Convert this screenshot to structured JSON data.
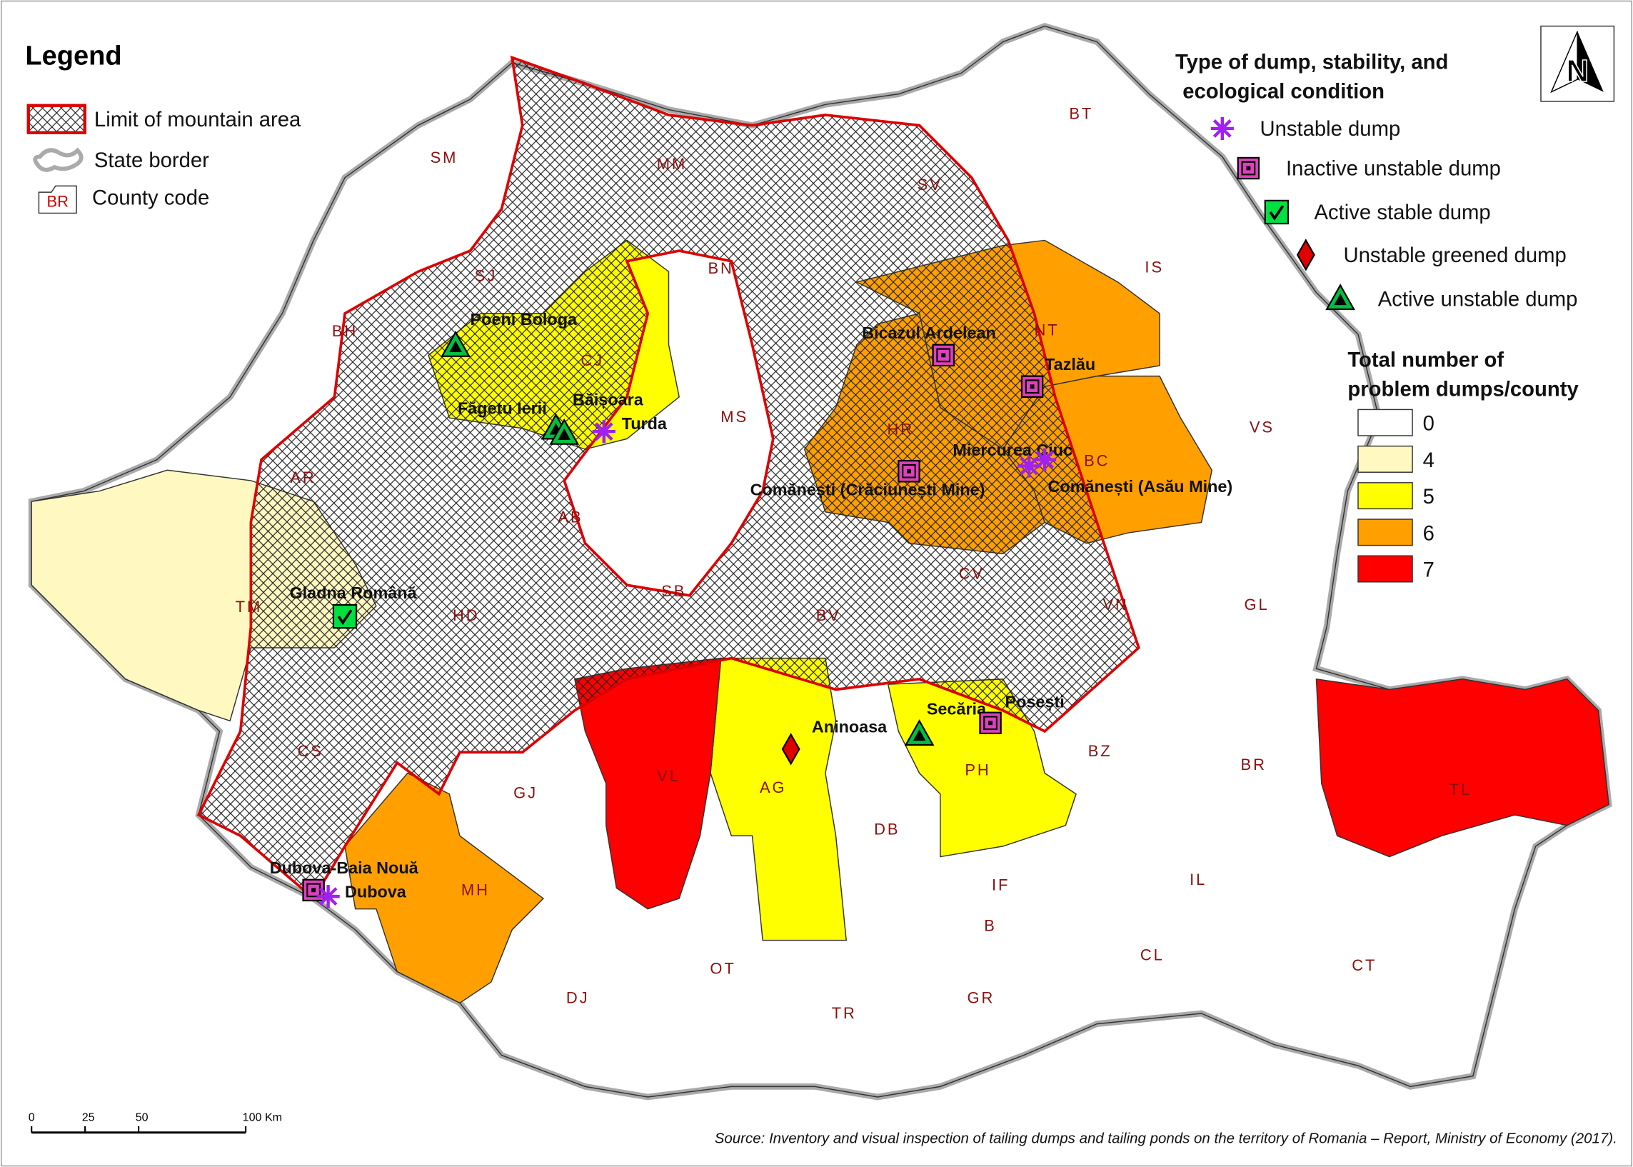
{
  "legend": {
    "title": "Legend",
    "items": [
      "Limit of mountain area",
      "State border",
      "County code"
    ],
    "code_sample": "BR"
  },
  "dump_legend": {
    "title": [
      "Type of dump, stability, and",
      "ecological condition"
    ],
    "types": [
      "Unstable dump",
      "Inactive unstable dump",
      "Active stable dump",
      "Unstable greened dump",
      "Active unstable dump"
    ]
  },
  "count_legend": {
    "title": [
      "Total number of",
      "problem dumps/county"
    ],
    "classes": [
      {
        "value": 0,
        "color": "#ffffff"
      },
      {
        "value": 4,
        "color": "#fff8c0"
      },
      {
        "value": 5,
        "color": "#ffff00"
      },
      {
        "value": 6,
        "color": "#ffa000"
      },
      {
        "value": 7,
        "color": "#ff0000"
      }
    ]
  },
  "counties": [
    {
      "code": "TM",
      "dumps": 4
    },
    {
      "code": "CJ",
      "dumps": 5
    },
    {
      "code": "AG",
      "dumps": 5
    },
    {
      "code": "PH",
      "dumps": 5
    },
    {
      "code": "HR",
      "dumps": 6
    },
    {
      "code": "NT",
      "dumps": 6
    },
    {
      "code": "BC",
      "dumps": 6
    },
    {
      "code": "MH",
      "dumps": 6
    },
    {
      "code": "VL",
      "dumps": 7
    },
    {
      "code": "TL",
      "dumps": 7
    },
    {
      "code": "SM"
    },
    {
      "code": "MM"
    },
    {
      "code": "BT"
    },
    {
      "code": "SV"
    },
    {
      "code": "IS"
    },
    {
      "code": "SJ"
    },
    {
      "code": "BN"
    },
    {
      "code": "BH"
    },
    {
      "code": "MS"
    },
    {
      "code": "VS"
    },
    {
      "code": "AR"
    },
    {
      "code": "AB"
    },
    {
      "code": "CV"
    },
    {
      "code": "HD"
    },
    {
      "code": "SB"
    },
    {
      "code": "BV"
    },
    {
      "code": "VN"
    },
    {
      "code": "GL"
    },
    {
      "code": "CS"
    },
    {
      "code": "GJ"
    },
    {
      "code": "BZ"
    },
    {
      "code": "BR"
    },
    {
      "code": "DB"
    },
    {
      "code": "IF"
    },
    {
      "code": "IL"
    },
    {
      "code": "B"
    },
    {
      "code": "CL"
    },
    {
      "code": "CT"
    },
    {
      "code": "DJ"
    },
    {
      "code": "OT"
    },
    {
      "code": "TR"
    },
    {
      "code": "GR"
    }
  ],
  "sites": [
    {
      "label": "Poeni Bologa",
      "type": 4
    },
    {
      "label": "Făgetu Ierii",
      "type": 4
    },
    {
      "label": "Băișoara",
      "type": 4
    },
    {
      "label": "Turda",
      "type": 0
    },
    {
      "label": "Gladna Română",
      "type": 2
    },
    {
      "label": "Dubova-Baia Nouă",
      "type": 1
    },
    {
      "label": "Dubova",
      "type": 0
    },
    {
      "label": "Aninoasa",
      "type": 3
    },
    {
      "label": "Secăria",
      "type": 4
    },
    {
      "label": "Posești",
      "type": 1
    },
    {
      "label": "Bicazul Ardelean",
      "type": 1
    },
    {
      "label": "Tazlău",
      "type": 1
    },
    {
      "label": "Miercurea Ciuc",
      "type": 0
    },
    {
      "label": "Comănești (Asău Mine)",
      "type": 0
    },
    {
      "label": "Comănești (Crăciunești Mine)",
      "type": 1
    }
  ],
  "scale_bar": {
    "ticks": [
      0,
      25,
      50,
      {
        "value": 100,
        "label": "100 Km"
      }
    ]
  },
  "north_arrow": "N",
  "source": "Source: Inventory and visual inspection of tailing dumps and tailing ponds on the territory of Romania – Report, Ministry of Economy (2017)."
}
